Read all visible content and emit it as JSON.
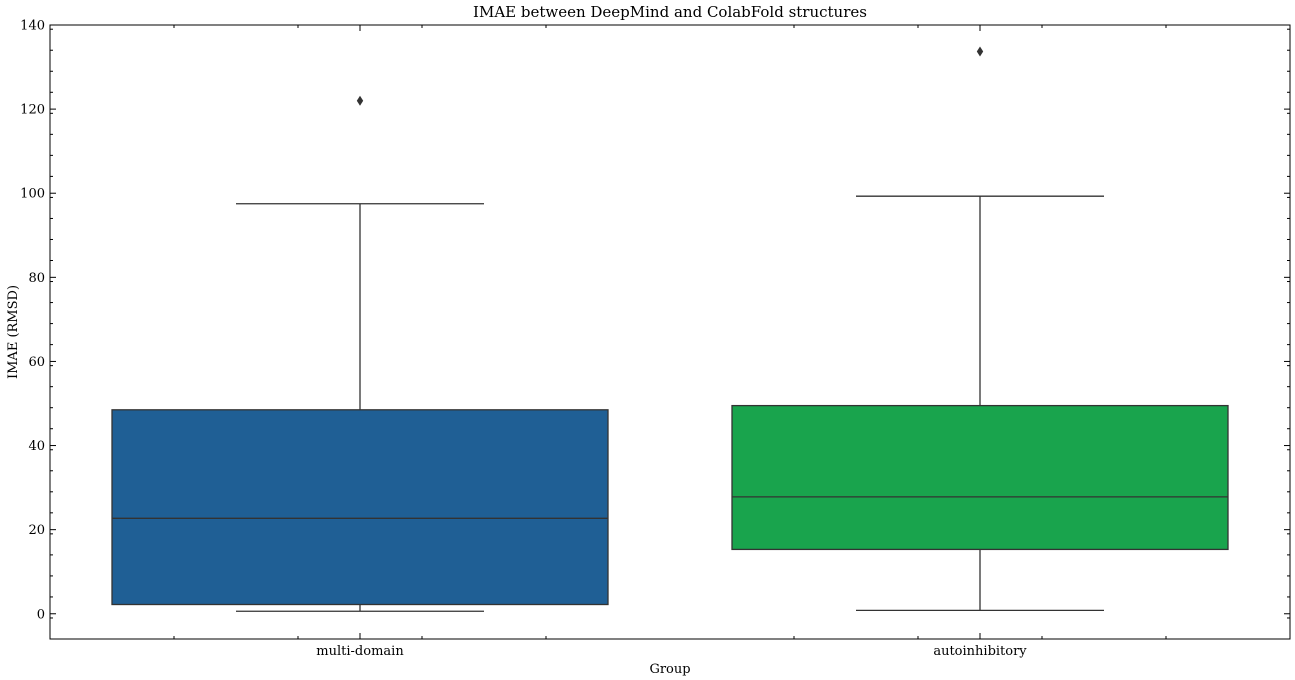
{
  "chart_data": {
    "type": "box",
    "title": "IMAE between DeepMind and ColabFold structures",
    "xlabel": "Group",
    "ylabel": "IMAE (RMSD)",
    "ylim": [
      -6,
      140
    ],
    "yticks": [
      0,
      20,
      40,
      60,
      80,
      100,
      120,
      140
    ],
    "yticks_labels": [
      "0",
      "20",
      "40",
      "60",
      "80",
      "100",
      "120",
      "140"
    ],
    "grid": false,
    "categories": [
      "multi-domain",
      "autoinhibitory"
    ],
    "boxes": [
      {
        "category": "multi-domain",
        "color": "#1f5f95",
        "whisker_low": 0.6,
        "q1": 2.2,
        "median": 22.7,
        "q3": 48.5,
        "whisker_high": 97.5,
        "outliers": [
          122
        ]
      },
      {
        "category": "autoinhibitory",
        "color": "#19a44d",
        "whisker_low": 0.8,
        "q1": 15.3,
        "median": 27.8,
        "q3": 49.5,
        "whisker_high": 99.3,
        "outliers": [
          133.7
        ]
      }
    ]
  }
}
